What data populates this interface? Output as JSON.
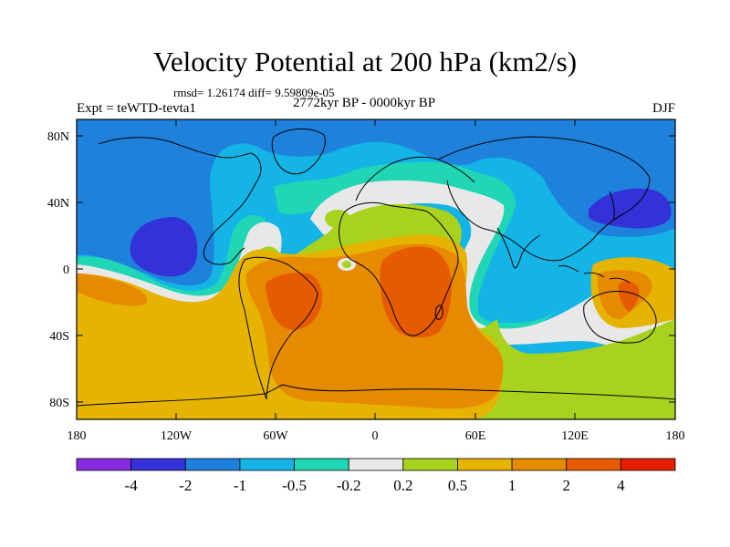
{
  "title": "Velocity Potential at 200 hPa (km2/s)",
  "stats_line": "rmsd= 1.26174 diff= 9.59809e-05",
  "period": "2772kyr BP - 0000kyr BP",
  "experiment": "Expt = teWTD-tevta1",
  "season": "DJF",
  "lat_labels": [
    "80N",
    "40N",
    "0",
    "40S",
    "80S"
  ],
  "lon_labels": [
    "180",
    "120W",
    "60W",
    "0",
    "60E",
    "120E",
    "180"
  ],
  "colorbar": {
    "labels": [
      "-4",
      "-2",
      "-1",
      "-0.5",
      "-0.2",
      "0.2",
      "0.5",
      "1",
      "2",
      "4"
    ],
    "colors": [
      "#8a2be2",
      "#3232d8",
      "#1e82dc",
      "#14b4e6",
      "#20d6b4",
      "#e8e8e8",
      "#a8d21e",
      "#e6b400",
      "#e68a00",
      "#e65a00",
      "#e61e00"
    ]
  },
  "map_colors": {
    "level_neg4": "#3232d8",
    "level_neg2": "#1e82dc",
    "level_neg1": "#14b4e6",
    "level_neg05": "#20d6b4",
    "level_neutral": "#e8e8e8",
    "level_pos02": "#a8d21e",
    "level_pos05": "#e6b400",
    "level_pos1": "#e68a00",
    "level_pos2": "#e65a00"
  }
}
